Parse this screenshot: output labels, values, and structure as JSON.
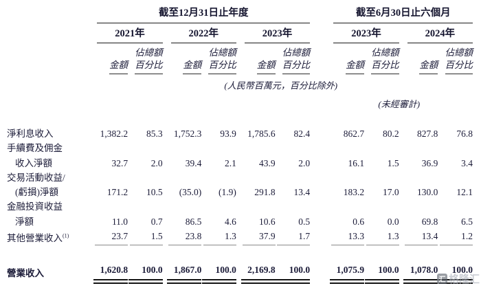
{
  "table": {
    "group_headers": [
      {
        "label": "截至12月31日止年度"
      },
      {
        "label": "截至6月30日止六個月"
      }
    ],
    "year_headers": [
      "2021年",
      "2022年",
      "2023年",
      "2023年",
      "2024年"
    ],
    "sub_headers": {
      "amount": "金額",
      "pct_line1": "佔總額",
      "pct_line2": "百分比"
    },
    "unit_note": "(人民幣百萬元，百分比除外)",
    "unaudited_note": "(未經審計)",
    "rows": [
      {
        "label": "淨利息收入",
        "values": [
          "1,382.2",
          "85.3",
          "1,752.3",
          "93.9",
          "1,785.6",
          "82.4",
          "862.7",
          "80.2",
          "827.8",
          "76.8"
        ]
      },
      {
        "label": "手續費及佣金"
      },
      {
        "label": "收入淨額",
        "values": [
          "32.7",
          "2.0",
          "39.4",
          "2.1",
          "43.9",
          "2.0",
          "16.1",
          "1.5",
          "36.9",
          "3.4"
        ]
      },
      {
        "label": "交易活動收益/"
      },
      {
        "label": "(虧損)淨額",
        "values": [
          "171.2",
          "10.5",
          "(35.0)",
          "(1.9)",
          "291.8",
          "13.4",
          "183.2",
          "17.0",
          "130.0",
          "12.1"
        ]
      },
      {
        "label": "金融投資收益"
      },
      {
        "label": "淨額",
        "values": [
          "11.0",
          "0.7",
          "86.5",
          "4.6",
          "10.6",
          "0.5",
          "0.6",
          "0.0",
          "69.8",
          "6.5"
        ]
      },
      {
        "label": "其他營業收入",
        "sup": "(1)",
        "values": [
          "23.7",
          "1.5",
          "23.8",
          "1.3",
          "37.9",
          "1.7",
          "13.3",
          "1.3",
          "13.4",
          "1.2"
        ]
      }
    ],
    "total_row": {
      "label": "營業收入",
      "values": [
        "1,620.8",
        "100.0",
        "1,867.0",
        "100.0",
        "2,169.8",
        "100.0",
        "1,075.9",
        "100.0",
        "1,078.0",
        "100.0"
      ]
    }
  },
  "watermark": {
    "icon_glyph": "汇",
    "text": "格隆汇"
  },
  "colors": {
    "text": "#1b1b38",
    "rule_dark": "#1a1a1a",
    "rule_gray": "#8a8a8a",
    "watermark_gray": "#aab0ba"
  }
}
